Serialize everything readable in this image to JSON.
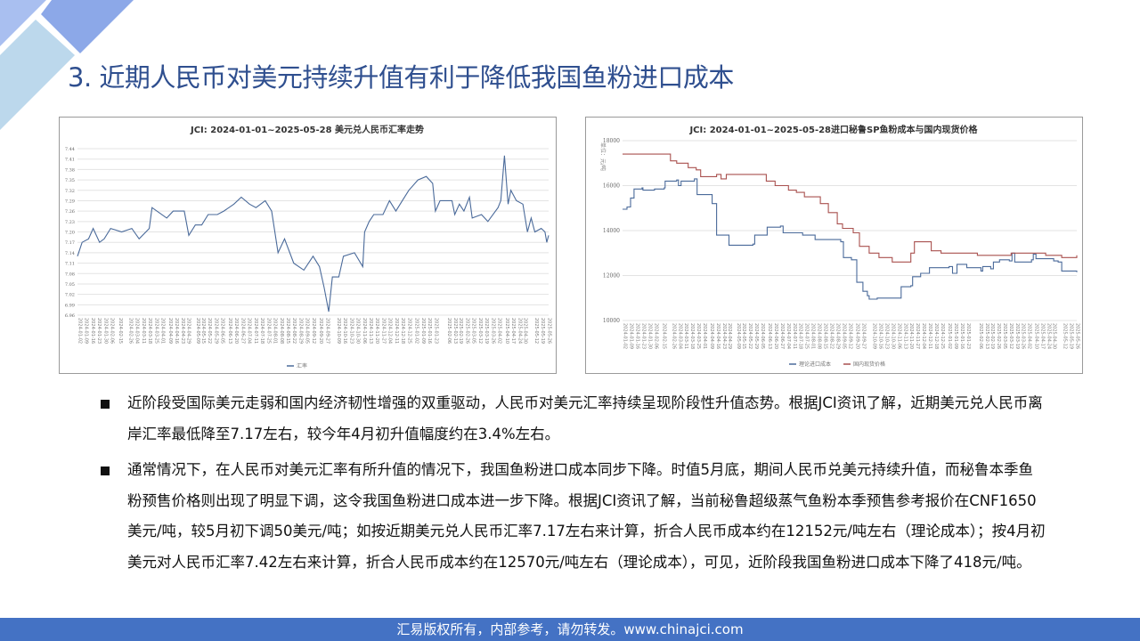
{
  "slide": {
    "title": "3. 近期人民币对美元持续升值有利于降低我国鱼粉进口成本",
    "colors": {
      "title": "#2f4f8f",
      "footer": "#4472c4",
      "deco_dark": "#7f9fe6",
      "deco_light": "#bcd8ec",
      "deco_mid": "#a9bff0"
    },
    "bullets": [
      "近阶段受国际美元走弱和国内经济韧性增强的双重驱动，人民币对美元汇率持续呈现阶段性升值态势。根据JCI资讯了解，近期美元兑人民币离岸汇率最低降至7.17左右，较今年4月初升值幅度约在3.4%左右。",
      "通常情况下，在人民币对美元汇率有所升值的情况下，我国鱼粉进口成本同步下降。时值5月底，期间人民币兑美元持续升值，而秘鲁本季鱼粉预售价格则出现了明显下调，这令我国鱼粉进口成本进一步下降。根据JCI资讯了解，当前秘鲁超级蒸气鱼粉本季预售参考报价在CNF1650美元/吨，较5月初下调50美元/吨；如按近期美元兑人民币汇率7.17左右来计算，折合人民币成本约在12152元/吨左右（理论成本）；按4月初美元对人民币汇率7.42左右来计算，折合人民币成本约在12570元/吨左右（理论成本），可见，近阶段我国鱼粉进口成本下降了418元/吨。"
    ],
    "footer": "汇易版权所有，内部参考，请勿转发。www.chinajci.com"
  },
  "chart_data": [
    {
      "type": "line",
      "title": "JCI: 2024-01-01~2025-05-28 美元兑人民币汇率走势",
      "xlabel": "",
      "ylabel": "",
      "ylim": [
        6.96,
        7.44
      ],
      "yticks": [
        "6.96",
        "6.99",
        "7.02",
        "7.05",
        "7.08",
        "7.11",
        "7.14",
        "7.17",
        "7.20",
        "7.23",
        "7.26",
        "7.29",
        "7.32",
        "7.35",
        "7.38",
        "7.41",
        "7.44"
      ],
      "xlim": [
        "2024-01-02",
        "2025-05-28"
      ],
      "xticks": [
        "2024-01-02",
        "2024-01-09",
        "2024-01-16",
        "2024-01-23",
        "2024-01-30",
        "2024-02-06",
        "2024-02-15",
        "2024-02-26",
        "2024-03-04",
        "2024-03-11",
        "2024-03-18",
        "2024-03-25",
        "2024-04-01",
        "2024-04-09",
        "2024-04-16",
        "2024-04-23",
        "2024-04-29",
        "2024-05-09",
        "2024-05-15",
        "2024-05-22",
        "2024-05-29",
        "2024-06-05",
        "2024-06-13",
        "2024-06-20",
        "2024-06-27",
        "2024-07-04",
        "2024-07-11",
        "2024-07-18",
        "2024-07-25",
        "2024-08-01",
        "2024-08-08",
        "2024-08-15",
        "2024-08-22",
        "2024-08-29",
        "2024-09-05",
        "2024-09-12",
        "2024-09-20",
        "2024-09-27",
        "2024-10-09",
        "2024-10-16",
        "2024-10-23",
        "2024-10-30",
        "2024-11-06",
        "2024-11-13",
        "2024-11-20",
        "2024-11-27",
        "2024-12-04",
        "2024-12-11",
        "2024-12-18",
        "2024-12-25",
        "2025-01-02",
        "2025-01-09",
        "2025-01-16",
        "2025-01-23",
        "2025-02-06",
        "2025-02-13",
        "2025-02-19",
        "2025-02-26",
        "2025-03-05",
        "2025-03-12",
        "2025-03-19",
        "2025-03-26",
        "2025-04-02",
        "2025-04-10",
        "2025-04-17",
        "2025-04-24",
        "2025-04-30",
        "2025-05-12",
        "2025-05-19",
        "2025-05-26"
      ],
      "grid": true,
      "legend": "bottom",
      "series": [
        {
          "name": "汇率",
          "color": "#4a6a9a",
          "x": [
            "2024-01-02",
            "2024-01-07",
            "2024-01-14",
            "2024-01-19",
            "2024-01-26",
            "2024-01-31",
            "2024-02-07",
            "2024-02-19",
            "2024-03-01",
            "2024-03-09",
            "2024-03-20",
            "2024-03-23",
            "2024-04-08",
            "2024-04-15",
            "2024-04-27",
            "2024-05-02",
            "2024-05-09",
            "2024-05-16",
            "2024-05-23",
            "2024-06-02",
            "2024-06-09",
            "2024-06-20",
            "2024-06-28",
            "2024-07-07",
            "2024-07-14",
            "2024-07-24",
            "2024-07-31",
            "2024-08-07",
            "2024-08-14",
            "2024-08-24",
            "2024-09-04",
            "2024-09-14",
            "2024-09-21",
            "2024-09-26",
            "2024-10-01",
            "2024-10-05",
            "2024-10-12",
            "2024-10-17",
            "2024-10-29",
            "2024-11-07",
            "2024-11-09",
            "2024-11-14",
            "2024-11-19",
            "2024-11-29",
            "2024-12-06",
            "2024-12-13",
            "2024-12-20",
            "2024-12-27",
            "2025-01-06",
            "2025-01-15",
            "2025-01-22",
            "2025-01-25",
            "2025-01-30",
            "2025-02-12",
            "2025-02-15",
            "2025-02-20",
            "2025-02-25",
            "2025-03-03",
            "2025-03-06",
            "2025-03-16",
            "2025-03-23",
            "2025-04-03",
            "2025-04-06",
            "2025-04-10",
            "2025-04-14",
            "2025-04-17",
            "2025-04-23",
            "2025-04-30",
            "2025-05-05",
            "2025-05-09",
            "2025-05-13",
            "2025-05-20",
            "2025-05-24",
            "2025-05-26",
            "2025-05-28"
          ],
          "values": [
            7.13,
            7.17,
            7.18,
            7.21,
            7.17,
            7.18,
            7.21,
            7.2,
            7.21,
            7.18,
            7.21,
            7.27,
            7.24,
            7.26,
            7.26,
            7.19,
            7.22,
            7.22,
            7.25,
            7.25,
            7.26,
            7.28,
            7.3,
            7.28,
            7.27,
            7.29,
            7.26,
            7.14,
            7.18,
            7.11,
            7.09,
            7.13,
            7.1,
            7.04,
            6.97,
            7.07,
            7.07,
            7.13,
            7.14,
            7.1,
            7.2,
            7.23,
            7.25,
            7.25,
            7.29,
            7.26,
            7.29,
            7.32,
            7.35,
            7.36,
            7.34,
            7.26,
            7.29,
            7.29,
            7.25,
            7.28,
            7.26,
            7.3,
            7.24,
            7.25,
            7.23,
            7.27,
            7.29,
            7.42,
            7.28,
            7.32,
            7.29,
            7.28,
            7.2,
            7.24,
            7.2,
            7.21,
            7.2,
            7.17,
            7.19
          ]
        }
      ]
    },
    {
      "type": "line",
      "title": "JCI: 2024-01-01~2025-05-28进口秘鲁SP鱼粉成本与国内现货价格",
      "xlabel": "",
      "ylabel": "单位：元/吨",
      "ylim": [
        10000,
        18000
      ],
      "yticks": [
        "10000",
        "12000",
        "14000",
        "16000",
        "18000"
      ],
      "xlim": [
        "2024-01-02",
        "2025-05-28"
      ],
      "xticks": [
        "2024-01-02",
        "2024-01-09",
        "2024-01-16",
        "2024-01-23",
        "2024-01-30",
        "2024-02-06",
        "2024-02-15",
        "2024-02-26",
        "2024-03-04",
        "2024-03-11",
        "2024-03-18",
        "2024-03-25",
        "2024-04-01",
        "2024-04-09",
        "2024-04-16",
        "2024-04-23",
        "2024-04-29",
        "2024-05-09",
        "2024-05-15",
        "2024-05-22",
        "2024-05-29",
        "2024-06-05",
        "2024-06-13",
        "2024-06-20",
        "2024-06-27",
        "2024-07-04",
        "2024-07-11",
        "2024-07-18",
        "2024-07-25",
        "2024-08-01",
        "2024-08-08",
        "2024-08-15",
        "2024-08-22",
        "2024-08-29",
        "2024-09-05",
        "2024-09-12",
        "2024-09-20",
        "2024-09-27",
        "2024-10-09",
        "2024-10-16",
        "2024-10-23",
        "2024-10-30",
        "2024-11-06",
        "2024-11-13",
        "2024-11-20",
        "2024-11-27",
        "2024-12-04",
        "2024-12-11",
        "2024-12-18",
        "2024-12-25",
        "2025-01-02",
        "2025-01-09",
        "2025-01-16",
        "2025-01-23",
        "2025-02-06",
        "2025-02-13",
        "2025-02-19",
        "2025-02-26",
        "2025-03-05",
        "2025-03-12",
        "2025-03-19",
        "2025-03-26",
        "2025-04-02",
        "2025-04-10",
        "2025-04-17",
        "2025-04-24",
        "2025-04-30",
        "2025-05-12",
        "2025-05-19",
        "2025-05-26"
      ],
      "grid": true,
      "legend": "bottom",
      "series": [
        {
          "name": "理论进口成本",
          "color": "#4a6a9a",
          "x": [
            "2024-01-02",
            "2024-01-07",
            "2024-01-11",
            "2024-01-15",
            "2024-01-24",
            "2024-01-25",
            "2024-02-07",
            "2024-02-18",
            "2024-02-19",
            "2024-03-03",
            "2024-03-05",
            "2024-03-08",
            "2024-03-23",
            "2024-03-26",
            "2024-04-10",
            "2024-04-12",
            "2024-04-15",
            "2024-04-17",
            "2024-04-28",
            "2024-05-01",
            "2024-05-28",
            "2024-05-30",
            "2024-06-12",
            "2024-06-13",
            "2024-06-28",
            "2024-07-01",
            "2024-07-23",
            "2024-08-06",
            "2024-09-04",
            "2024-09-07",
            "2024-09-16",
            "2024-09-22",
            "2024-09-29",
            "2024-10-04",
            "2024-10-06",
            "2024-10-15",
            "2024-11-06",
            "2024-11-11",
            "2024-11-22",
            "2024-11-24",
            "2024-12-03",
            "2024-12-13",
            "2025-01-04",
            "2025-01-08",
            "2025-01-13",
            "2025-01-24",
            "2025-02-07",
            "2025-02-09",
            "2025-02-11",
            "2025-02-20",
            "2025-02-23",
            "2025-03-02",
            "2025-03-13",
            "2025-03-16",
            "2025-03-19",
            "2025-04-07",
            "2025-04-09",
            "2025-04-12",
            "2025-05-02",
            "2025-05-07",
            "2025-05-11",
            "2025-05-28"
          ],
          "values": [
            14950,
            15050,
            15450,
            15850,
            15900,
            15800,
            15850,
            15900,
            16200,
            16250,
            16000,
            16200,
            16300,
            15600,
            15600,
            15200,
            15200,
            13800,
            13800,
            13350,
            13400,
            13800,
            13800,
            14150,
            14200,
            13900,
            13800,
            13600,
            13500,
            12800,
            12700,
            11700,
            11300,
            11100,
            10950,
            11000,
            11000,
            11500,
            11550,
            11950,
            12100,
            12350,
            12400,
            12100,
            12500,
            12350,
            12350,
            12200,
            12400,
            12300,
            12600,
            12700,
            12650,
            13000,
            12600,
            12700,
            12950,
            12750,
            12650,
            12600,
            12200,
            12150
          ]
        },
        {
          "name": "国内现货价格",
          "color": "#a9514f",
          "x": [
            "2024-01-02",
            "2024-02-18",
            "2024-02-25",
            "2024-03-03",
            "2024-03-16",
            "2024-03-25",
            "2024-03-30",
            "2024-04-13",
            "2024-04-17",
            "2024-04-22",
            "2024-04-28",
            "2024-06-06",
            "2024-06-12",
            "2024-06-22",
            "2024-07-07",
            "2024-07-16",
            "2024-07-25",
            "2024-08-06",
            "2024-08-12",
            "2024-08-21",
            "2024-08-31",
            "2024-09-06",
            "2024-09-18",
            "2024-09-25",
            "2024-10-06",
            "2024-10-17",
            "2024-10-30",
            "2024-11-01",
            "2024-11-15",
            "2024-11-22",
            "2024-11-26",
            "2024-12-12",
            "2024-12-15",
            "2024-12-26",
            "2025-02-04",
            "2025-02-05",
            "2025-03-13",
            "2025-03-15",
            "2025-04-22",
            "2025-04-23",
            "2025-05-10",
            "2025-05-11",
            "2025-05-26",
            "2025-05-28"
          ],
          "values": [
            17400,
            17400,
            17100,
            17000,
            16800,
            16700,
            16400,
            16400,
            16500,
            16300,
            16500,
            16500,
            16200,
            16000,
            15800,
            15700,
            15500,
            15500,
            15200,
            14800,
            14300,
            14100,
            13900,
            13300,
            13000,
            12800,
            12800,
            12600,
            12600,
            13000,
            13500,
            13500,
            13100,
            13000,
            13000,
            12900,
            12900,
            13000,
            13000,
            12900,
            12900,
            12800,
            12800,
            12900
          ]
        }
      ]
    }
  ]
}
